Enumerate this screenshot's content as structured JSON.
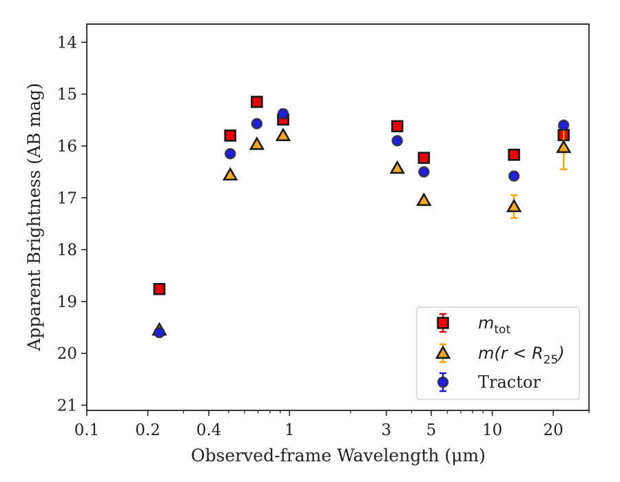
{
  "chart_data": {
    "type": "scatter",
    "xlabel": "Observed-frame Wavelength (μm)",
    "ylabel": "Apparent Brightness (AB mag)",
    "x_scale": "log",
    "xlim": [
      0.1,
      30
    ],
    "ylim": [
      21.1,
      13.65
    ],
    "y_inverted": true,
    "grid": false,
    "legend_position": "lower-right",
    "x_ticks": [
      {
        "value": 0.1,
        "label": "0.1"
      },
      {
        "value": 0.2,
        "label": "0.2"
      },
      {
        "value": 0.4,
        "label": "0.4"
      },
      {
        "value": 1,
        "label": "1"
      },
      {
        "value": 3,
        "label": "3"
      },
      {
        "value": 5,
        "label": "5"
      },
      {
        "value": 10,
        "label": "10"
      },
      {
        "value": 20,
        "label": "20"
      }
    ],
    "x_minor_ticks": [
      0.3,
      0.5,
      0.6,
      0.7,
      0.8,
      0.9,
      2,
      4,
      6,
      7,
      8,
      9,
      30
    ],
    "y_ticks": [
      {
        "value": 14,
        "label": "14"
      },
      {
        "value": 15,
        "label": "15"
      },
      {
        "value": 16,
        "label": "16"
      },
      {
        "value": 17,
        "label": "17"
      },
      {
        "value": 18,
        "label": "18"
      },
      {
        "value": 19,
        "label": "19"
      },
      {
        "value": 20,
        "label": "20"
      },
      {
        "value": 21,
        "label": "21"
      }
    ],
    "series": [
      {
        "name": "m_tot",
        "legend_main": "m",
        "legend_sub": "tot",
        "marker": "square",
        "color": "#e8000b",
        "error_color": "#e8000b",
        "points": [
          {
            "x": 0.228,
            "y": 18.76,
            "err": 0.03
          },
          {
            "x": 0.51,
            "y": 15.8,
            "err": 0.03
          },
          {
            "x": 0.69,
            "y": 15.15,
            "err": 0.03
          },
          {
            "x": 0.93,
            "y": 15.49,
            "err": 0.03
          },
          {
            "x": 3.4,
            "y": 15.62,
            "err": 0.03
          },
          {
            "x": 4.6,
            "y": 16.23,
            "err": 0.03
          },
          {
            "x": 12.8,
            "y": 16.17,
            "err": 0.05
          },
          {
            "x": 22.5,
            "y": 15.79,
            "err": 0.08
          }
        ]
      },
      {
        "name": "m(r < R25)",
        "legend_main": "m(r < R",
        "legend_sub": "25",
        "legend_tail": ")",
        "marker": "triangle",
        "color": "#f5a623",
        "error_color": "#ffa500",
        "points": [
          {
            "x": 0.228,
            "y": 19.55,
            "err": 0.04
          },
          {
            "x": 0.51,
            "y": 16.56,
            "err": 0.03
          },
          {
            "x": 0.69,
            "y": 15.97,
            "err": 0.03
          },
          {
            "x": 0.93,
            "y": 15.8,
            "err": 0.03
          },
          {
            "x": 3.4,
            "y": 16.43,
            "err": 0.03
          },
          {
            "x": 4.6,
            "y": 17.05,
            "err": 0.03
          },
          {
            "x": 12.8,
            "y": 17.17,
            "err": 0.22
          },
          {
            "x": 22.5,
            "y": 16.03,
            "err": 0.42
          }
        ]
      },
      {
        "name": "Tractor",
        "legend_main": "Tractor",
        "marker": "circle",
        "color": "#1f1fe0",
        "error_color": "#1f1fe0",
        "points": [
          {
            "x": 0.228,
            "y": 19.6,
            "err": 0.04
          },
          {
            "x": 0.51,
            "y": 16.15,
            "err": 0.05
          },
          {
            "x": 0.69,
            "y": 15.57,
            "err": 0.05
          },
          {
            "x": 0.93,
            "y": 15.38,
            "err": 0.08
          },
          {
            "x": 3.4,
            "y": 15.9,
            "err": 0.05
          },
          {
            "x": 4.6,
            "y": 16.5,
            "err": 0.05
          },
          {
            "x": 12.8,
            "y": 16.58,
            "err": 0.04
          },
          {
            "x": 22.5,
            "y": 15.6,
            "err": 0.04
          }
        ]
      }
    ]
  }
}
